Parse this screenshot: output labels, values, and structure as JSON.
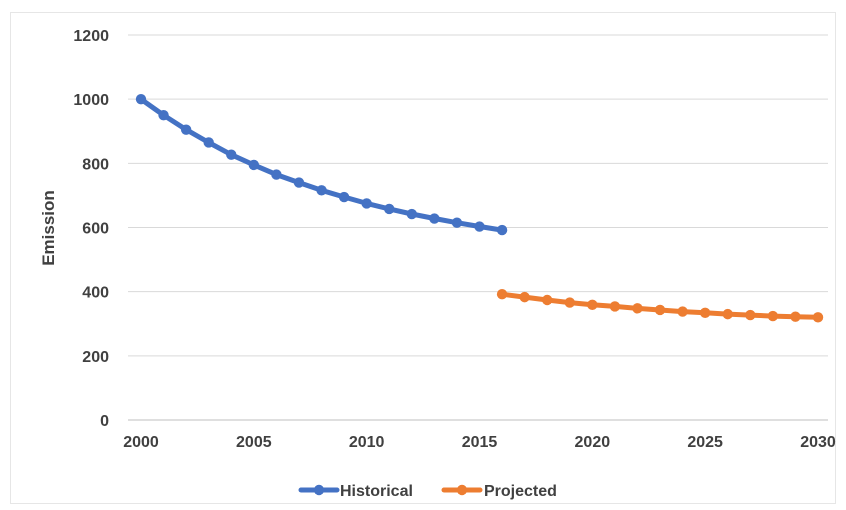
{
  "chart_data": {
    "type": "line",
    "title": "",
    "xlabel": "",
    "ylabel": "Emission",
    "xlim": [
      2000,
      2030
    ],
    "ylim": [
      0,
      1200
    ],
    "x_ticks": [
      2000,
      2005,
      2010,
      2015,
      2020,
      2025,
      2030
    ],
    "y_ticks": [
      0,
      200,
      400,
      600,
      800,
      1000,
      1200
    ],
    "grid": true,
    "legend": "bottom",
    "series": [
      {
        "name": "Historical",
        "color": "#4472C4",
        "x": [
          2000,
          2001,
          2002,
          2003,
          2004,
          2005,
          2006,
          2007,
          2008,
          2009,
          2010,
          2011,
          2012,
          2013,
          2014,
          2015,
          2016
        ],
        "values": [
          1000,
          950,
          905,
          865,
          827,
          795,
          765,
          740,
          716,
          695,
          675,
          658,
          642,
          628,
          615,
          603,
          592
        ]
      },
      {
        "name": "Projected",
        "color": "#ED7D31",
        "x": [
          2016,
          2017,
          2018,
          2019,
          2020,
          2021,
          2022,
          2023,
          2024,
          2025,
          2026,
          2027,
          2028,
          2029,
          2030
        ],
        "values": [
          392,
          383,
          374,
          366,
          359,
          354,
          348,
          343,
          338,
          334,
          330,
          327,
          324,
          322,
          320
        ]
      }
    ]
  }
}
